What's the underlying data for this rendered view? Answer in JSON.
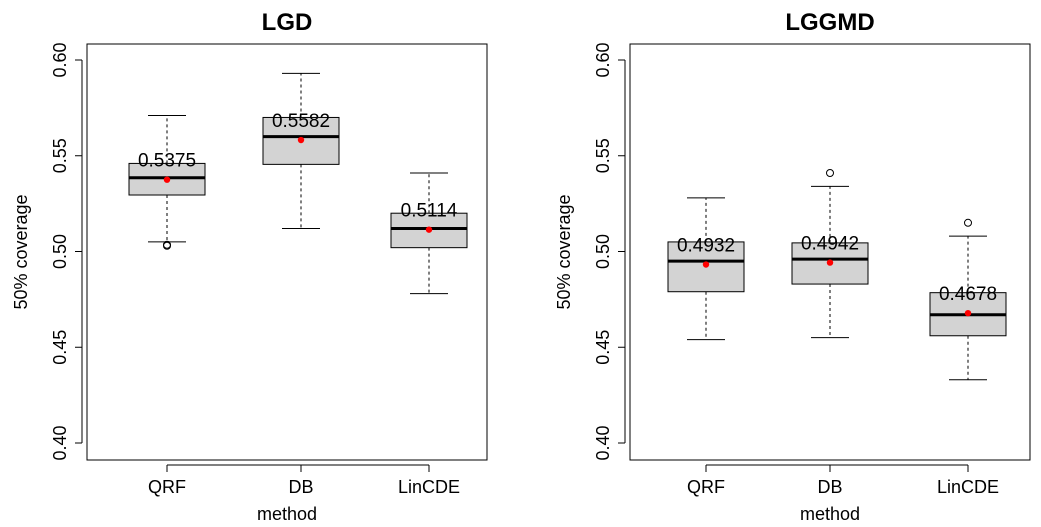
{
  "chart_data": [
    {
      "type": "box",
      "title": "LGD",
      "xlabel": "method",
      "ylabel": "50% coverage",
      "ylim": [
        0.4,
        0.6
      ],
      "yticks": [
        "0.40",
        "0.45",
        "0.50",
        "0.55",
        "0.60"
      ],
      "categories": [
        "QRF",
        "DB",
        "LinCDE"
      ],
      "boxes": [
        {
          "name": "QRF",
          "whisker_low": 0.505,
          "q1": 0.5295,
          "median": 0.5385,
          "q3": 0.546,
          "whisker_high": 0.571,
          "mean": 0.5375,
          "mean_label": "0.5375",
          "outliers": [
            0.5035,
            0.503
          ]
        },
        {
          "name": "DB",
          "whisker_low": 0.512,
          "q1": 0.5455,
          "median": 0.56,
          "q3": 0.57,
          "whisker_high": 0.593,
          "mean": 0.5582,
          "mean_label": "0.5582",
          "outliers": []
        },
        {
          "name": "LinCDE",
          "whisker_low": 0.478,
          "q1": 0.502,
          "median": 0.512,
          "q3": 0.52,
          "whisker_high": 0.541,
          "mean": 0.5114,
          "mean_label": "0.5114",
          "outliers": []
        }
      ]
    },
    {
      "type": "box",
      "title": "LGGMD",
      "xlabel": "method",
      "ylabel": "50% coverage",
      "ylim": [
        0.4,
        0.6
      ],
      "yticks": [
        "0.40",
        "0.45",
        "0.50",
        "0.55",
        "0.60"
      ],
      "categories": [
        "QRF",
        "DB",
        "LinCDE"
      ],
      "boxes": [
        {
          "name": "QRF",
          "whisker_low": 0.454,
          "q1": 0.479,
          "median": 0.495,
          "q3": 0.505,
          "whisker_high": 0.528,
          "mean": 0.4932,
          "mean_label": "0.4932",
          "outliers": []
        },
        {
          "name": "DB",
          "whisker_low": 0.455,
          "q1": 0.483,
          "median": 0.496,
          "q3": 0.5045,
          "whisker_high": 0.534,
          "mean": 0.4942,
          "mean_label": "0.4942",
          "outliers": [
            0.541
          ]
        },
        {
          "name": "LinCDE",
          "whisker_low": 0.433,
          "q1": 0.456,
          "median": 0.467,
          "q3": 0.4785,
          "whisker_high": 0.508,
          "mean": 0.4678,
          "mean_label": "0.4678",
          "outliers": [
            0.515
          ]
        }
      ]
    }
  ],
  "colors": {
    "box_fill": "#d3d3d3",
    "line": "#000000",
    "mean_point": "#ff0000"
  }
}
